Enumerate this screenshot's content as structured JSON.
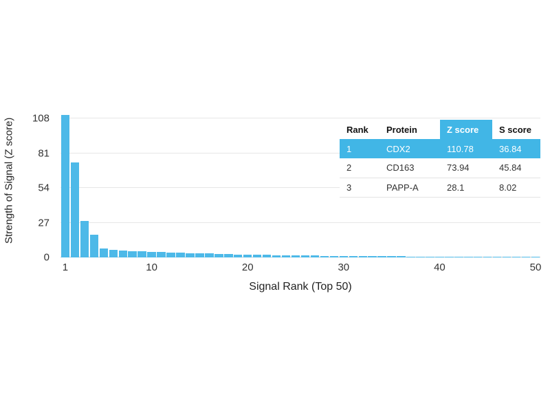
{
  "chart_data": {
    "type": "bar",
    "title": "",
    "xlabel": "Signal Rank (Top 50)",
    "ylabel": "Strength of Signal (Z score)",
    "x": [
      1,
      2,
      3,
      4,
      5,
      6,
      7,
      8,
      9,
      10,
      11,
      12,
      13,
      14,
      15,
      16,
      17,
      18,
      19,
      20,
      21,
      22,
      23,
      24,
      25,
      26,
      27,
      28,
      29,
      30,
      31,
      32,
      33,
      34,
      35,
      36,
      37,
      38,
      39,
      40,
      41,
      42,
      43,
      44,
      45,
      46,
      47,
      48,
      49,
      50
    ],
    "values": [
      110.78,
      73.94,
      28.1,
      17.5,
      6.8,
      5.9,
      5.4,
      5.0,
      4.7,
      4.4,
      4.1,
      3.8,
      3.6,
      3.4,
      3.2,
      3.0,
      2.8,
      2.6,
      2.4,
      2.2,
      2.0,
      1.9,
      1.8,
      1.7,
      1.6,
      1.5,
      1.4,
      1.3,
      1.25,
      1.2,
      1.1,
      1.05,
      1.0,
      0.95,
      0.9,
      0.85,
      0.8,
      0.75,
      0.7,
      0.65,
      0.6,
      0.55,
      0.5,
      0.48,
      0.45,
      0.42,
      0.4,
      0.38,
      0.35,
      0.32
    ],
    "x_ticks": [
      1,
      10,
      20,
      30,
      40,
      50
    ],
    "y_ticks": [
      0,
      27,
      54,
      81,
      108
    ],
    "ylim": [
      0,
      118
    ],
    "grid": true,
    "legend": "none",
    "bar_color": "#4db9e8",
    "gridline_color": "#e6e6e6",
    "axis_color": "#c9c9c9"
  },
  "table": {
    "columns": [
      "Rank",
      "Protein",
      "Z score",
      "S score"
    ],
    "highlight_color": "#41b6e6",
    "rows": [
      {
        "rank": "1",
        "protein": "CDX2",
        "z_score": "110.78",
        "s_score": "36.84",
        "highlight": true
      },
      {
        "rank": "2",
        "protein": "CD163",
        "z_score": "73.94",
        "s_score": "45.84",
        "highlight": false
      },
      {
        "rank": "3",
        "protein": "PAPP-A",
        "z_score": "28.1",
        "s_score": "8.02",
        "highlight": false
      }
    ]
  }
}
